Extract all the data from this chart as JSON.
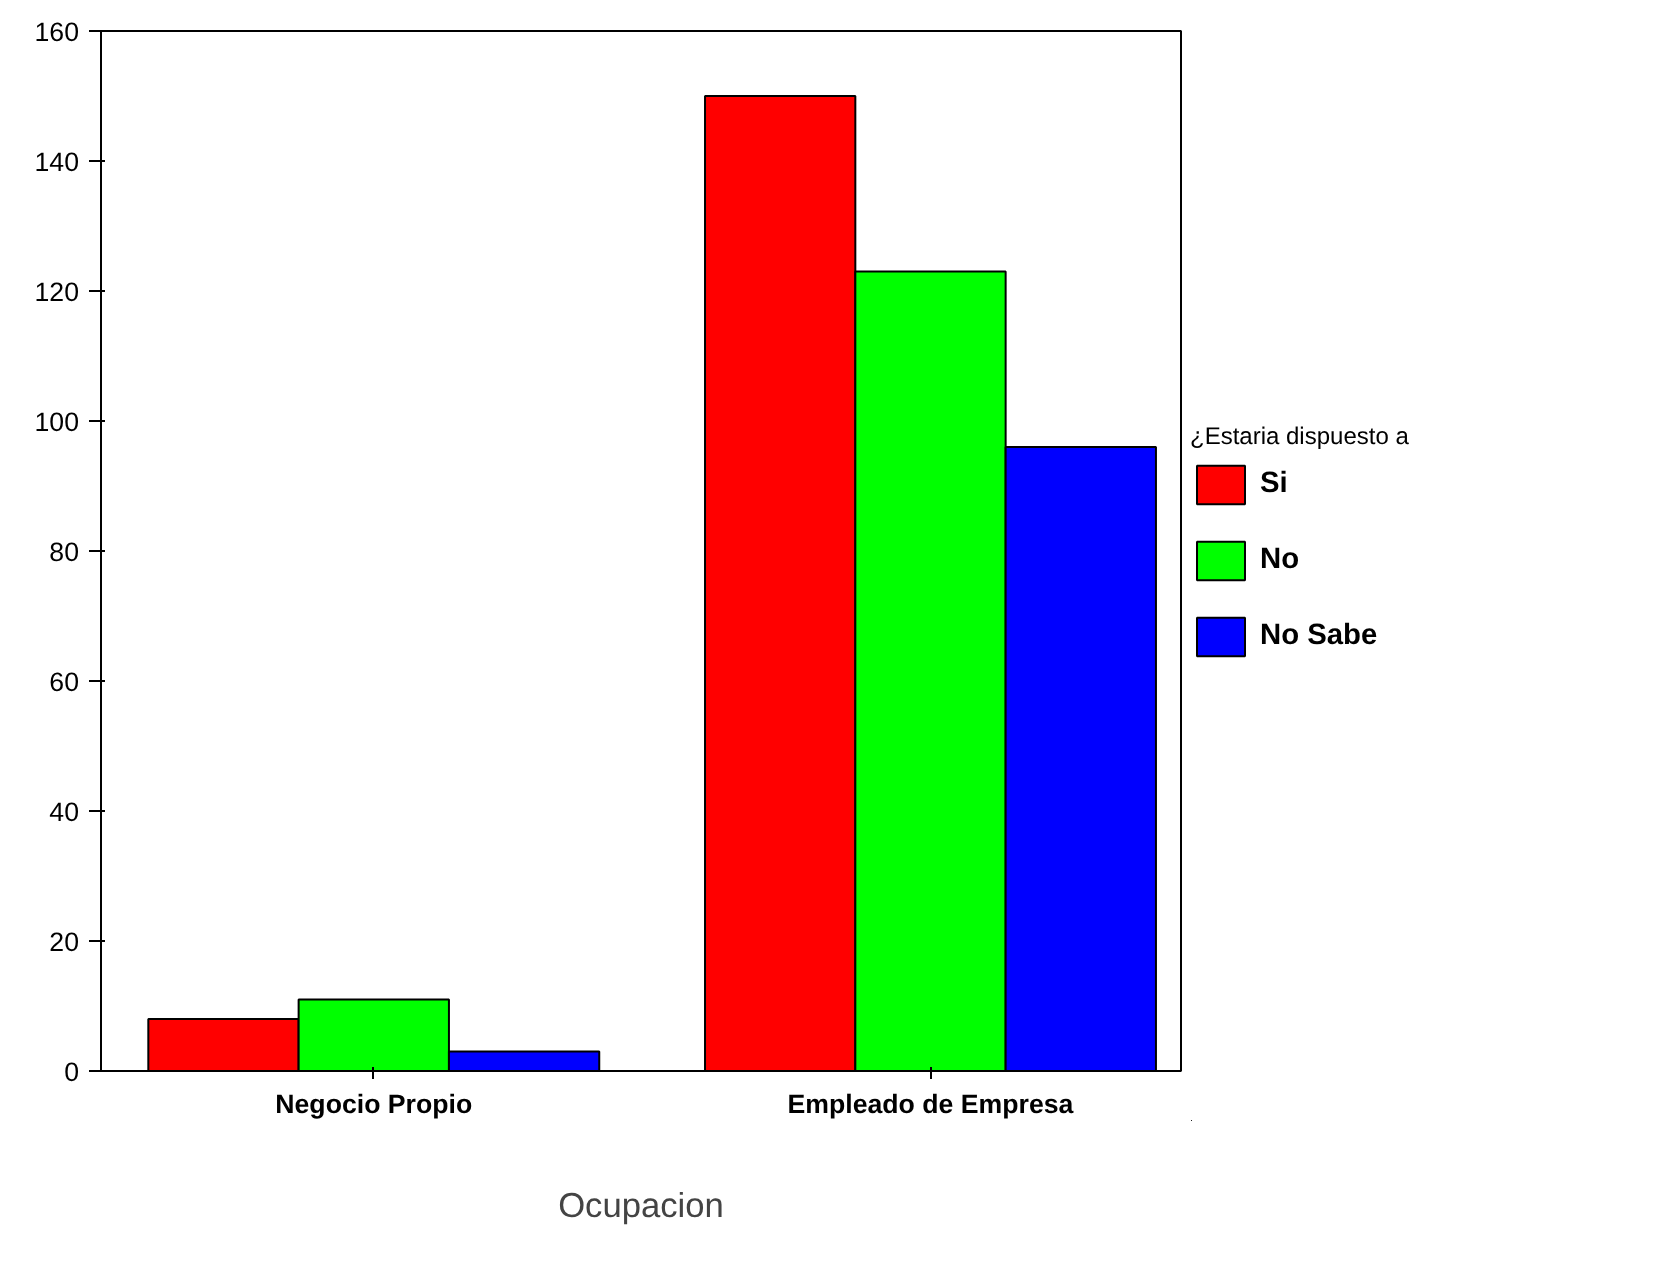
{
  "chart_data": {
    "type": "bar",
    "xlabel": "Ocupacion",
    "legend_title": "¿Estaria dispuesto a",
    "categories": [
      "Negocio Propio",
      "Empleado de Empresa"
    ],
    "series": [
      {
        "name": "Si",
        "color": "#ff0000",
        "values": [
          8,
          150
        ]
      },
      {
        "name": "No",
        "color": "#00ff00",
        "values": [
          11,
          123
        ]
      },
      {
        "name": "No Sabe",
        "color": "#0000ff",
        "values": [
          3,
          96
        ]
      }
    ],
    "ylim": [
      0,
      160
    ],
    "yticks": [
      0,
      20,
      40,
      60,
      80,
      100,
      120,
      140,
      160
    ],
    "grid": false,
    "legend": "right"
  }
}
